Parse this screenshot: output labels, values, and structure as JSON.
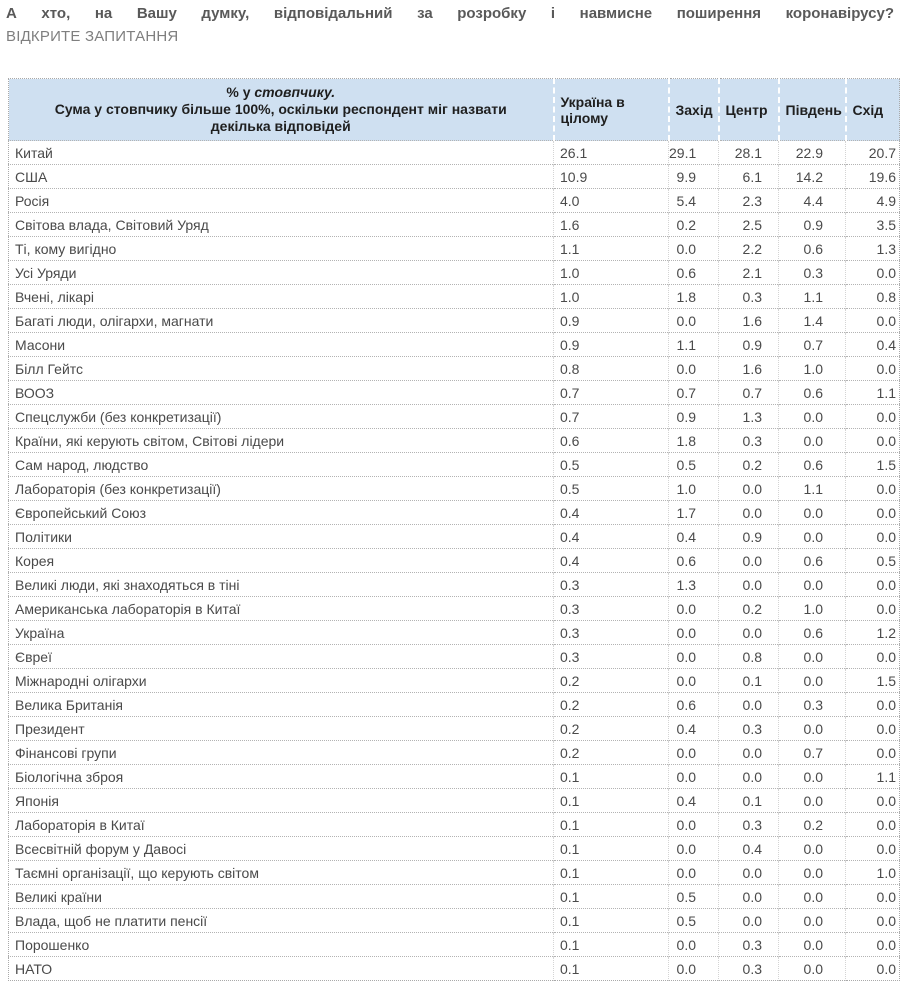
{
  "title": "А хто, на Вашу думку, відповідальний за розробку і навмисне поширення коронавірусу?",
  "subtitle": "ВІДКРИТЕ ЗАПИТАННЯ",
  "colors": {
    "header_bg": "#cfe0f1",
    "title_text": "#595959",
    "subtitle_text": "#7f7f7f",
    "body_text": "#4a4a4a"
  },
  "chart_data": {
    "type": "table",
    "title": "А хто, на Вашу думку, відповідальний за розробку і навмисне поширення коронавірусу?",
    "subtitle": "ВІДКРИТЕ ЗАПИТАННЯ",
    "note": {
      "line1_prefix": "% у ",
      "line1_italic": "стовпчику.",
      "line2": "Сума у стовпчику більше 100%, оскільки респондент міг назвати",
      "line3": "декілька відповідей"
    },
    "columns": [
      "Україна в цілому",
      "Захід",
      "Центр",
      "Південь",
      "Схід"
    ],
    "rows": [
      {
        "label": "Китай",
        "values": [
          "26.1",
          "29.1",
          "28.1",
          "22.9",
          "20.7"
        ]
      },
      {
        "label": "США",
        "values": [
          "10.9",
          "9.9",
          "6.1",
          "14.2",
          "19.6"
        ]
      },
      {
        "label": "Росія",
        "values": [
          "4.0",
          "5.4",
          "2.3",
          "4.4",
          "4.9"
        ]
      },
      {
        "label": "Світова влада, Світовий Уряд",
        "values": [
          "1.6",
          "0.2",
          "2.5",
          "0.9",
          "3.5"
        ]
      },
      {
        "label": "Ті, кому вигідно",
        "values": [
          "1.1",
          "0.0",
          "2.2",
          "0.6",
          "1.3"
        ]
      },
      {
        "label": "Усі Уряди",
        "values": [
          "1.0",
          "0.6",
          "2.1",
          "0.3",
          "0.0"
        ]
      },
      {
        "label": "Вчені, лікарі",
        "values": [
          "1.0",
          "1.8",
          "0.3",
          "1.1",
          "0.8"
        ]
      },
      {
        "label": "Багаті люди, олігархи, магнати",
        "values": [
          "0.9",
          "0.0",
          "1.6",
          "1.4",
          "0.0"
        ]
      },
      {
        "label": "Масони",
        "values": [
          "0.9",
          "1.1",
          "0.9",
          "0.7",
          "0.4"
        ]
      },
      {
        "label": "Білл Гейтс",
        "values": [
          "0.8",
          "0.0",
          "1.6",
          "1.0",
          "0.0"
        ]
      },
      {
        "label": "ВООЗ",
        "values": [
          "0.7",
          "0.7",
          "0.7",
          "0.6",
          "1.1"
        ]
      },
      {
        "label": "Спецслужби (без конкретизації)",
        "values": [
          "0.7",
          "0.9",
          "1.3",
          "0.0",
          "0.0"
        ]
      },
      {
        "label": "Країни, які керують світом, Світові лідери",
        "values": [
          "0.6",
          "1.8",
          "0.3",
          "0.0",
          "0.0"
        ]
      },
      {
        "label": "Сам народ, людство",
        "values": [
          "0.5",
          "0.5",
          "0.2",
          "0.6",
          "1.5"
        ]
      },
      {
        "label": "Лабораторія (без конкретизації)",
        "values": [
          "0.5",
          "1.0",
          "0.0",
          "1.1",
          "0.0"
        ]
      },
      {
        "label": "Європейський Союз",
        "values": [
          "0.4",
          "1.7",
          "0.0",
          "0.0",
          "0.0"
        ]
      },
      {
        "label": "Політики",
        "values": [
          "0.4",
          "0.4",
          "0.9",
          "0.0",
          "0.0"
        ]
      },
      {
        "label": "Корея",
        "values": [
          "0.4",
          "0.6",
          "0.0",
          "0.6",
          "0.5"
        ]
      },
      {
        "label": "Великі люди, які знаходяться в тіні",
        "values": [
          "0.3",
          "1.3",
          "0.0",
          "0.0",
          "0.0"
        ]
      },
      {
        "label": "Американська лабораторія в Китаї",
        "values": [
          "0.3",
          "0.0",
          "0.2",
          "1.0",
          "0.0"
        ]
      },
      {
        "label": "Україна",
        "values": [
          "0.3",
          "0.0",
          "0.0",
          "0.6",
          "1.2"
        ]
      },
      {
        "label": "Євреї",
        "values": [
          "0.3",
          "0.0",
          "0.8",
          "0.0",
          "0.0"
        ]
      },
      {
        "label": "Міжнародні олігархи",
        "values": [
          "0.2",
          "0.0",
          "0.1",
          "0.0",
          "1.5"
        ]
      },
      {
        "label": "Велика Британія",
        "values": [
          "0.2",
          "0.6",
          "0.0",
          "0.3",
          "0.0"
        ]
      },
      {
        "label": "Президент",
        "values": [
          "0.2",
          "0.4",
          "0.3",
          "0.0",
          "0.0"
        ]
      },
      {
        "label": "Фінансові групи",
        "values": [
          "0.2",
          "0.0",
          "0.0",
          "0.7",
          "0.0"
        ]
      },
      {
        "label": "Біологічна зброя",
        "values": [
          "0.1",
          "0.0",
          "0.0",
          "0.0",
          "1.1"
        ]
      },
      {
        "label": "Японія",
        "values": [
          "0.1",
          "0.4",
          "0.1",
          "0.0",
          "0.0"
        ]
      },
      {
        "label": "Лабораторія в Китаї",
        "values": [
          "0.1",
          "0.0",
          "0.3",
          "0.2",
          "0.0"
        ]
      },
      {
        "label": "Всесвітній форум у Давосі",
        "values": [
          "0.1",
          "0.0",
          "0.4",
          "0.0",
          "0.0"
        ]
      },
      {
        "label": "Таємні організації, що керують світом",
        "values": [
          "0.1",
          "0.0",
          "0.0",
          "0.0",
          "1.0"
        ]
      },
      {
        "label": "Великі країни",
        "values": [
          "0.1",
          "0.5",
          "0.0",
          "0.0",
          "0.0"
        ]
      },
      {
        "label": "Влада, щоб не платити пенсії",
        "values": [
          "0.1",
          "0.5",
          "0.0",
          "0.0",
          "0.0"
        ]
      },
      {
        "label": "Порошенко",
        "values": [
          "0.1",
          "0.0",
          "0.3",
          "0.0",
          "0.0"
        ]
      },
      {
        "label": "НАТО",
        "values": [
          "0.1",
          "0.0",
          "0.3",
          "0.0",
          "0.0"
        ]
      }
    ]
  }
}
